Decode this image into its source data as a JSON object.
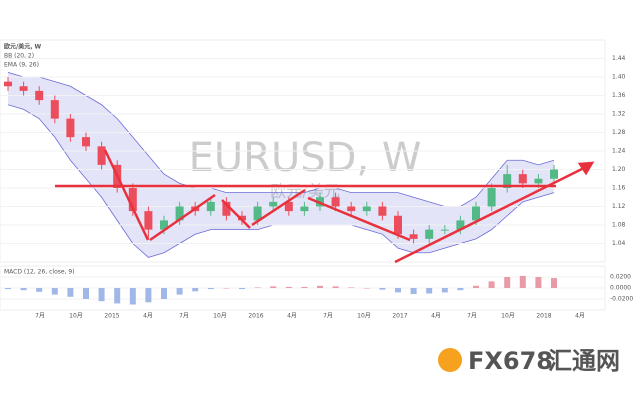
{
  "chart_data": {
    "type": "candlestick",
    "title": "欧元/美元, W",
    "watermark": "EURUSD, W",
    "watermark_subtitle": "欧元/美元",
    "indicator_bb": "BB (20, 2)",
    "indicator_ma": "EMA (9, 26)",
    "indicator_macd": "MACD (12, 26, close, 9)",
    "brand": "FX678",
    "brand_cn": "汇通网",
    "x_labels": [
      "7月",
      "10月",
      "2015",
      "4月",
      "7月",
      "10月",
      "2016",
      "4月",
      "7月",
      "10月",
      "2017",
      "4月",
      "7月",
      "10月",
      "2018",
      "4月"
    ],
    "open": [
      1.39,
      1.38,
      1.37,
      1.35,
      1.31,
      1.27,
      1.25,
      1.21,
      1.16,
      1.11,
      1.07,
      1.09,
      1.12,
      1.11,
      1.13,
      1.1,
      1.09,
      1.12,
      1.13,
      1.11,
      1.12,
      1.14,
      1.12,
      1.11,
      1.12,
      1.1,
      1.06,
      1.05,
      1.07,
      1.07,
      1.09,
      1.12,
      1.16,
      1.19,
      1.17,
      1.18
    ],
    "high": [
      1.4,
      1.39,
      1.38,
      1.36,
      1.32,
      1.28,
      1.26,
      1.22,
      1.17,
      1.12,
      1.1,
      1.13,
      1.13,
      1.14,
      1.14,
      1.11,
      1.13,
      1.14,
      1.14,
      1.13,
      1.15,
      1.15,
      1.13,
      1.13,
      1.13,
      1.11,
      1.07,
      1.08,
      1.08,
      1.1,
      1.13,
      1.17,
      1.21,
      1.2,
      1.19,
      1.21
    ],
    "low": [
      1.37,
      1.36,
      1.34,
      1.3,
      1.26,
      1.24,
      1.2,
      1.15,
      1.1,
      1.05,
      1.06,
      1.08,
      1.1,
      1.1,
      1.09,
      1.08,
      1.08,
      1.11,
      1.1,
      1.1,
      1.11,
      1.11,
      1.1,
      1.1,
      1.09,
      1.05,
      1.04,
      1.04,
      1.06,
      1.06,
      1.08,
      1.11,
      1.15,
      1.16,
      1.16,
      1.17
    ],
    "close": [
      1.38,
      1.37,
      1.35,
      1.31,
      1.27,
      1.25,
      1.21,
      1.16,
      1.11,
      1.07,
      1.09,
      1.12,
      1.11,
      1.13,
      1.1,
      1.09,
      1.12,
      1.13,
      1.11,
      1.12,
      1.14,
      1.12,
      1.11,
      1.12,
      1.1,
      1.06,
      1.05,
      1.07,
      1.07,
      1.09,
      1.12,
      1.16,
      1.19,
      1.17,
      1.18,
      1.2
    ],
    "bb_upper": [
      1.41,
      1.4,
      1.4,
      1.39,
      1.38,
      1.36,
      1.34,
      1.31,
      1.27,
      1.23,
      1.19,
      1.17,
      1.16,
      1.16,
      1.15,
      1.15,
      1.15,
      1.15,
      1.15,
      1.15,
      1.16,
      1.16,
      1.15,
      1.15,
      1.15,
      1.15,
      1.14,
      1.13,
      1.12,
      1.12,
      1.14,
      1.18,
      1.22,
      1.22,
      1.21,
      1.22
    ],
    "bb_lower": [
      1.34,
      1.33,
      1.31,
      1.27,
      1.22,
      1.18,
      1.14,
      1.09,
      1.04,
      1.01,
      1.02,
      1.04,
      1.06,
      1.07,
      1.07,
      1.07,
      1.07,
      1.08,
      1.08,
      1.08,
      1.08,
      1.08,
      1.08,
      1.07,
      1.06,
      1.03,
      1.02,
      1.02,
      1.03,
      1.04,
      1.05,
      1.07,
      1.1,
      1.13,
      1.14,
      1.15
    ],
    "macd": [
      -0.002,
      -0.004,
      -0.007,
      -0.012,
      -0.016,
      -0.02,
      -0.024,
      -0.028,
      -0.03,
      -0.026,
      -0.02,
      -0.012,
      -0.006,
      -0.002,
      0.0,
      -0.002,
      0.001,
      0.003,
      0.002,
      0.002,
      0.004,
      0.003,
      0.001,
      0.0,
      -0.003,
      -0.008,
      -0.011,
      -0.01,
      -0.008,
      -0.004,
      0.004,
      0.012,
      0.02,
      0.022,
      0.02,
      0.018
    ],
    "ylim": [
      1.0,
      1.48
    ],
    "yticks": [
      {
        "value": 1.04,
        "label": "1.04"
      },
      {
        "value": 1.08,
        "label": "1.08"
      },
      {
        "value": 1.12,
        "label": "1.12"
      },
      {
        "value": 1.16,
        "label": "1.16"
      },
      {
        "value": 1.2,
        "label": "1.20"
      },
      {
        "value": 1.24,
        "label": "1.24"
      },
      {
        "value": 1.28,
        "label": "1.28"
      },
      {
        "value": 1.32,
        "label": "1.32"
      },
      {
        "value": 1.36,
        "label": "1.36"
      },
      {
        "value": 1.4,
        "label": "1.40"
      },
      {
        "value": 1.44,
        "label": "1.44"
      }
    ],
    "macd_lim": [
      -0.04,
      0.04
    ],
    "macd_ticks": [
      {
        "value": 0.02,
        "label": "0.0200"
      },
      {
        "value": 0,
        "label": "0.0000"
      },
      {
        "value": -0.02,
        "label": "-0.0200"
      }
    ],
    "up_color": "#53b987",
    "down_color": "#eb4d5c",
    "band_color": "#6a6ad8"
  }
}
